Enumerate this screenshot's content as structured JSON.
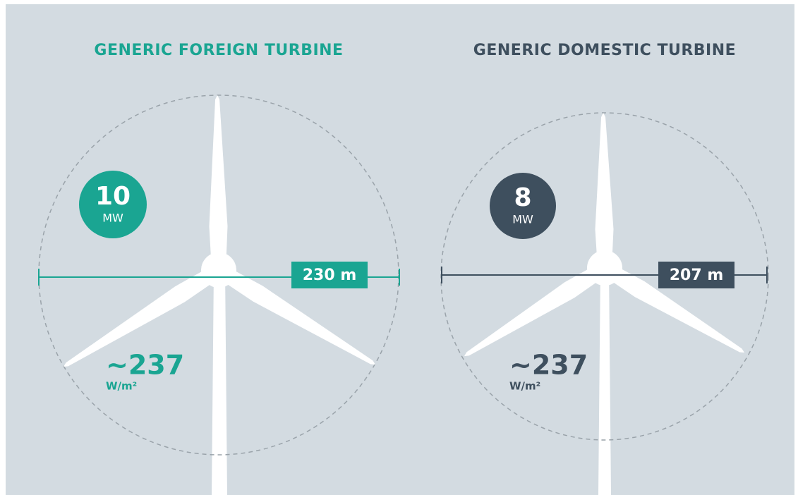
{
  "turbines": [
    {
      "title": "GENERIC FOREIGN TURBINE",
      "power": "10",
      "power_unit": "MW",
      "diameter": "230 m",
      "specific_power": "~237",
      "specific_power_unit": "W/m²"
    },
    {
      "title": "GENERIC DOMESTIC TURBINE",
      "power": "8",
      "power_unit": "MW",
      "diameter": "207 m",
      "specific_power": "~237",
      "specific_power_unit": "W/m²"
    }
  ]
}
